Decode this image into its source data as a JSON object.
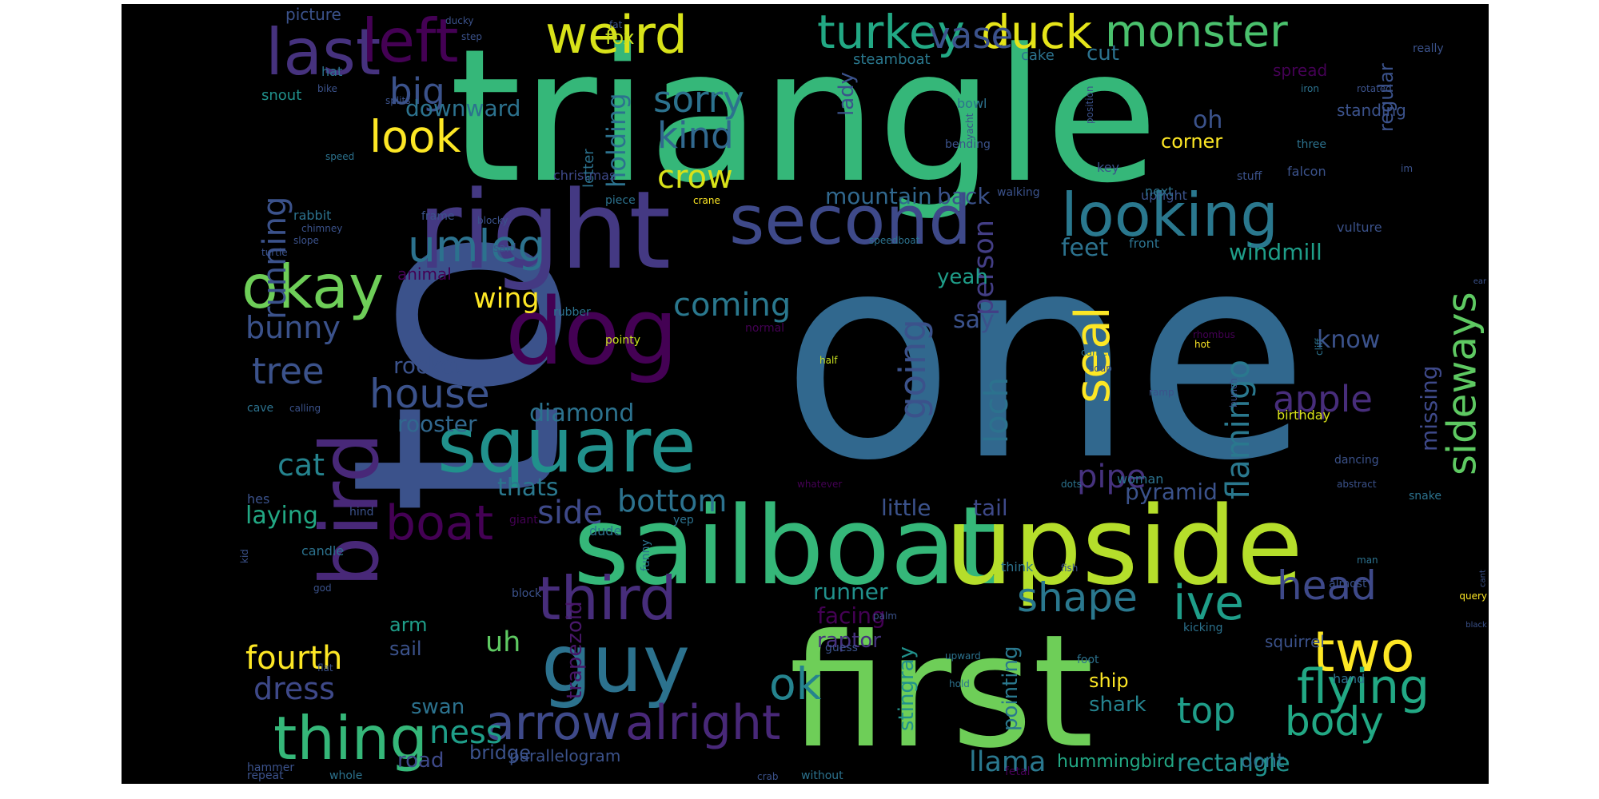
{
  "background": "#000000",
  "colormap": "viridis",
  "words": [
    {
      "t": "one",
      "c": "#31688e"
    },
    {
      "t": "triangle",
      "c": "#35b779"
    },
    {
      "t": "to",
      "c": "#3b528b"
    },
    {
      "t": "first",
      "c": "#6ece58"
    },
    {
      "t": "sailboat",
      "c": "#35b779"
    },
    {
      "t": "upside",
      "c": "#b5de2b"
    },
    {
      "t": "right",
      "c": "#443983"
    },
    {
      "t": "dog",
      "c": "#440154"
    },
    {
      "t": "square",
      "c": "#21918c"
    },
    {
      "t": "guy",
      "c": "#2c728e"
    },
    {
      "t": "bird",
      "c": "#482878"
    },
    {
      "t": "second",
      "c": "#3e4989"
    },
    {
      "t": "looking",
      "c": "#2a788e"
    },
    {
      "t": "third",
      "c": "#472d7b"
    },
    {
      "t": "thing",
      "c": "#35b779"
    },
    {
      "t": "arrow",
      "c": "#3e4989"
    },
    {
      "t": "weird",
      "c": "#d8e219"
    },
    {
      "t": "last",
      "c": "#46327e"
    },
    {
      "t": "okay",
      "c": "#6ece58"
    },
    {
      "t": "left",
      "c": "#440154"
    },
    {
      "t": "umleg",
      "c": "#2c728e"
    },
    {
      "t": "alright",
      "c": "#482878"
    },
    {
      "t": "turkey",
      "c": "#22a884"
    },
    {
      "t": "duck",
      "c": "#e5e419"
    },
    {
      "t": "monster",
      "c": "#4ac16d"
    },
    {
      "t": "vase",
      "c": "#3b528b"
    },
    {
      "t": "two",
      "c": "#fde725"
    },
    {
      "t": "flying",
      "c": "#22a884"
    },
    {
      "t": "head",
      "c": "#3e4989"
    },
    {
      "t": "shape",
      "c": "#2a788e"
    },
    {
      "t": "ive",
      "c": "#1f9e89"
    },
    {
      "t": "body",
      "c": "#22a884"
    },
    {
      "t": "boat",
      "c": "#440154"
    },
    {
      "t": "house",
      "c": "#3b528b"
    },
    {
      "t": "look",
      "c": "#fde725"
    },
    {
      "t": "big",
      "c": "#3b528b"
    },
    {
      "t": "sorry",
      "c": "#2c728e"
    },
    {
      "t": "kind",
      "c": "#31688e"
    },
    {
      "t": "crow",
      "c": "#d8e219"
    },
    {
      "t": "seal",
      "c": "#fde725"
    },
    {
      "t": "ok",
      "c": "#25838e"
    },
    {
      "t": "tree",
      "c": "#3b528b"
    },
    {
      "t": "top",
      "c": "#1f9e89"
    },
    {
      "t": "ness",
      "c": "#1f9e89"
    },
    {
      "t": "side",
      "c": "#3e4989"
    },
    {
      "t": "sideways",
      "c": "#5ec962"
    },
    {
      "t": "flamingo",
      "c": "#2a788e"
    },
    {
      "t": "running",
      "c": "#3b528b"
    },
    {
      "t": "bunny",
      "c": "#3b528b"
    },
    {
      "t": "bottom",
      "c": "#2c728e"
    },
    {
      "t": "apple",
      "c": "#472d7b"
    },
    {
      "t": "pipe",
      "c": "#46327e"
    },
    {
      "t": "going",
      "c": "#3b528b"
    },
    {
      "t": "loch",
      "c": "#2c728e"
    },
    {
      "t": "person",
      "c": "#433e85"
    },
    {
      "t": "cat",
      "c": "#25838e"
    },
    {
      "t": "coming",
      "c": "#2a788e"
    },
    {
      "t": "fourth",
      "c": "#fde725"
    },
    {
      "t": "dress",
      "c": "#3e4989"
    },
    {
      "t": "llama",
      "c": "#2a788e"
    },
    {
      "t": "rectangle",
      "c": "#21918c"
    },
    {
      "t": "holding",
      "c": "#2c728e"
    },
    {
      "t": "wing",
      "c": "#fde725"
    },
    {
      "t": "rocket",
      "c": "#3b528b"
    },
    {
      "t": "rooster",
      "c": "#31688e"
    },
    {
      "t": "diamond",
      "c": "#2c728e"
    },
    {
      "t": "feet",
      "c": "#2c728e"
    },
    {
      "t": "know",
      "c": "#3b528b"
    },
    {
      "t": "missing",
      "c": "#3e4989"
    },
    {
      "t": "pyramid",
      "c": "#3b528b"
    },
    {
      "t": "little",
      "c": "#3b528b"
    },
    {
      "t": "tail",
      "c": "#3e4989"
    },
    {
      "t": "thats",
      "c": "#2a788e"
    },
    {
      "t": "laying",
      "c": "#22a884"
    },
    {
      "t": "runner",
      "c": "#21918c"
    },
    {
      "t": "facing",
      "c": "#440154"
    },
    {
      "t": "say",
      "c": "#3b528b"
    },
    {
      "t": "yeah",
      "c": "#1f9e89"
    },
    {
      "t": "mountain",
      "c": "#31688e"
    },
    {
      "t": "back",
      "c": "#3b528b"
    },
    {
      "t": "oh",
      "c": "#3b528b"
    },
    {
      "t": "corner",
      "c": "#fde725"
    },
    {
      "t": "windmill",
      "c": "#1f9e89"
    },
    {
      "t": "downward",
      "c": "#2c728e"
    },
    {
      "t": "lady",
      "c": "#3b528b"
    },
    {
      "t": "cut",
      "c": "#2c728e"
    },
    {
      "t": "fox",
      "c": "#c8e020"
    },
    {
      "t": "arm",
      "c": "#1f9e89"
    },
    {
      "t": "sail",
      "c": "#3b528b"
    },
    {
      "t": "uh",
      "c": "#5ec962"
    },
    {
      "t": "swan",
      "c": "#2c728e"
    },
    {
      "t": "road",
      "c": "#3e4989"
    },
    {
      "t": "shark",
      "c": "#25838e"
    },
    {
      "t": "ship",
      "c": "#fde725"
    },
    {
      "t": "pointing",
      "c": "#2a788e"
    },
    {
      "t": "stingray",
      "c": "#21918c"
    },
    {
      "t": "raptor",
      "c": "#46327e"
    },
    {
      "t": "trapezoid",
      "c": "#481769"
    },
    {
      "t": "bridge",
      "c": "#3b528b"
    },
    {
      "t": "parallelogram",
      "c": "#3b528b"
    },
    {
      "t": "hummingbird",
      "c": "#22a884"
    },
    {
      "t": "dont",
      "c": "#2c728e"
    },
    {
      "t": "squirrel",
      "c": "#3b528b"
    },
    {
      "t": "regular",
      "c": "#3b528b"
    },
    {
      "t": "standing",
      "c": "#3b528b"
    },
    {
      "t": "spread",
      "c": "#440154"
    },
    {
      "t": "steamboat",
      "c": "#2a788e"
    },
    {
      "t": "picture",
      "c": "#3b528b"
    },
    {
      "t": "snout",
      "c": "#21918c"
    },
    {
      "t": "hat",
      "c": "#2c728e"
    },
    {
      "t": "cake",
      "c": "#2c728e"
    },
    {
      "t": "bowl",
      "c": "#2c728e"
    },
    {
      "t": "christmas",
      "c": "#3e4989"
    },
    {
      "t": "letter",
      "c": "#2c728e"
    },
    {
      "t": "falcon",
      "c": "#3b528b"
    },
    {
      "t": "birthday",
      "c": "#d8e219"
    },
    {
      "t": "woman",
      "c": "#2c728e"
    },
    {
      "t": "key",
      "c": "#3b528b"
    },
    {
      "t": "upright",
      "c": "#3b528b"
    },
    {
      "t": "next",
      "c": "#2c728e"
    },
    {
      "t": "front",
      "c": "#2c728e"
    },
    {
      "t": "vulture",
      "c": "#3b528b"
    },
    {
      "t": "animal",
      "c": "#440154"
    },
    {
      "t": "rabbit",
      "c": "#2c728e"
    },
    {
      "t": "frame",
      "c": "#3b528b"
    },
    {
      "t": "piece",
      "c": "#2c728e"
    },
    {
      "t": "crane",
      "c": "#fde725"
    },
    {
      "t": "stuff",
      "c": "#3b528b"
    },
    {
      "t": "three",
      "c": "#2c728e"
    },
    {
      "t": "bending",
      "c": "#3b528b"
    },
    {
      "t": "walking",
      "c": "#3b528b"
    },
    {
      "t": "speedboat",
      "c": "#2c728e"
    },
    {
      "t": "said",
      "c": "#3b528b"
    },
    {
      "t": "rubber",
      "c": "#2c728e"
    },
    {
      "t": "dancing",
      "c": "#3b528b"
    },
    {
      "t": "abstract",
      "c": "#3b528b"
    },
    {
      "t": "snake",
      "c": "#2c728e"
    },
    {
      "t": "candle",
      "c": "#2c728e"
    },
    {
      "t": "dude",
      "c": "#2c728e"
    },
    {
      "t": "yep",
      "c": "#2c728e"
    },
    {
      "t": "giant",
      "c": "#440154"
    },
    {
      "t": "hind",
      "c": "#3b528b"
    },
    {
      "t": "hes",
      "c": "#3b528b"
    },
    {
      "t": "kid",
      "c": "#3b528b"
    },
    {
      "t": "funny",
      "c": "#2c728e"
    },
    {
      "t": "block",
      "c": "#3b528b"
    },
    {
      "t": "god",
      "c": "#3b528b"
    },
    {
      "t": "think",
      "c": "#2c728e"
    },
    {
      "t": "fish",
      "c": "#3b528b"
    },
    {
      "t": "almost",
      "c": "#3b528b"
    },
    {
      "t": "man",
      "c": "#2c728e"
    },
    {
      "t": "query",
      "c": "#fde725"
    },
    {
      "t": "kicking",
      "c": "#2c728e"
    },
    {
      "t": "guess",
      "c": "#3b528b"
    },
    {
      "t": "palm",
      "c": "#3b528b"
    },
    {
      "t": "upward",
      "c": "#2c728e"
    },
    {
      "t": "hold",
      "c": "#2c728e"
    },
    {
      "t": "foot",
      "c": "#2c728e"
    },
    {
      "t": "hand",
      "c": "#2c728e"
    },
    {
      "t": "black",
      "c": "#3b528b"
    },
    {
      "t": "cant",
      "c": "#3b528b"
    },
    {
      "t": "hammer",
      "c": "#3b528b"
    },
    {
      "t": "repeat",
      "c": "#3b528b"
    },
    {
      "t": "whole",
      "c": "#2c728e"
    },
    {
      "t": "crab",
      "c": "#3b528b"
    },
    {
      "t": "without",
      "c": "#2c728e"
    },
    {
      "t": "fetal",
      "c": "#440154"
    },
    {
      "t": "flat",
      "c": "#3b528b"
    },
    {
      "t": "slope",
      "c": "#3b528b"
    },
    {
      "t": "chimney",
      "c": "#3b528b"
    },
    {
      "t": "turtle",
      "c": "#3b528b"
    },
    {
      "t": "cave",
      "c": "#2c728e"
    },
    {
      "t": "calling",
      "c": "#3b528b"
    },
    {
      "t": "speed",
      "c": "#2c728e"
    },
    {
      "t": "bike",
      "c": "#3b528b"
    },
    {
      "t": "splits",
      "c": "#3b528b"
    },
    {
      "t": "blocky",
      "c": "#3b528b"
    },
    {
      "t": "ducky",
      "c": "#3b528b"
    },
    {
      "t": "step",
      "c": "#3b528b"
    },
    {
      "t": "fat",
      "c": "#3b528b"
    },
    {
      "t": "yacht",
      "c": "#3b528b"
    },
    {
      "t": "position",
      "c": "#3b528b"
    },
    {
      "t": "iron",
      "c": "#2c728e"
    },
    {
      "t": "rotated",
      "c": "#3b528b"
    },
    {
      "t": "really",
      "c": "#3b528b"
    },
    {
      "t": "im",
      "c": "#3b528b"
    },
    {
      "t": "pointy",
      "c": "#c8e020"
    },
    {
      "t": "normal",
      "c": "#440154"
    },
    {
      "t": "half",
      "c": "#c8e020"
    },
    {
      "t": "hot",
      "c": "#fde725"
    },
    {
      "t": "rhombus",
      "c": "#440154"
    },
    {
      "t": "camel",
      "c": "#2c728e"
    },
    {
      "t": "soup",
      "c": "#3b528b"
    },
    {
      "t": "ramp",
      "c": "#3b528b"
    },
    {
      "t": "bunch",
      "c": "#3b528b"
    },
    {
      "t": "cliff",
      "c": "#2c728e"
    },
    {
      "t": "dots",
      "c": "#2c728e"
    },
    {
      "t": "whatever",
      "c": "#440154"
    },
    {
      "t": "ear",
      "c": "#3b528b"
    }
  ]
}
